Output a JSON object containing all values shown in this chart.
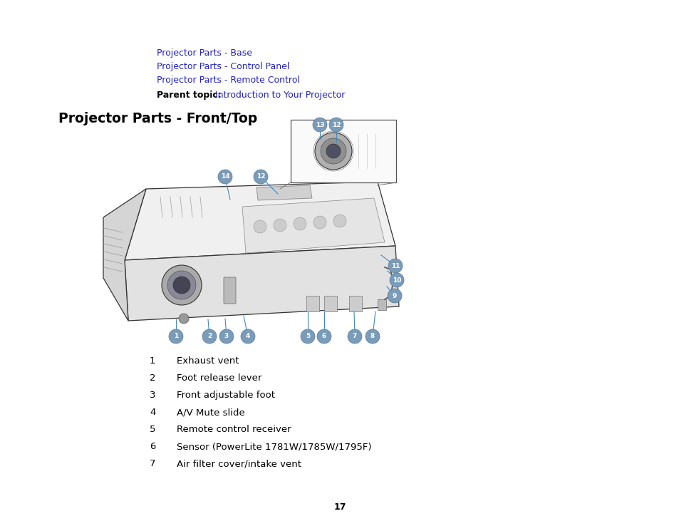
{
  "bg_color": "#ffffff",
  "link_color": "#2222cc",
  "text_color": "#000000",
  "badge_color": "#7a9cb8",
  "badge_edge": "#5a7a98",
  "proj_edge": "#333333",
  "blue_line_color": "#4488bb",
  "links": [
    "Projector Parts - Base",
    "Projector Parts - Control Panel",
    "Projector Parts - Remote Control"
  ],
  "parent_topic_label": "Parent topic:",
  "parent_topic_link": "Introduction to Your Projector",
  "section_title": "Projector Parts - Front/Top",
  "items": [
    {
      "num": "1",
      "desc": "Exhaust vent"
    },
    {
      "num": "2",
      "desc": "Foot release lever"
    },
    {
      "num": "3",
      "desc": "Front adjustable foot"
    },
    {
      "num": "4",
      "desc": "A/V Mute slide"
    },
    {
      "num": "5",
      "desc": "Remote control receiver"
    },
    {
      "num": "6",
      "desc": "Sensor (PowerLite 1781W/1785W/1795F)"
    },
    {
      "num": "7",
      "desc": "Air filter cover/intake vent"
    }
  ],
  "page_number": "17"
}
